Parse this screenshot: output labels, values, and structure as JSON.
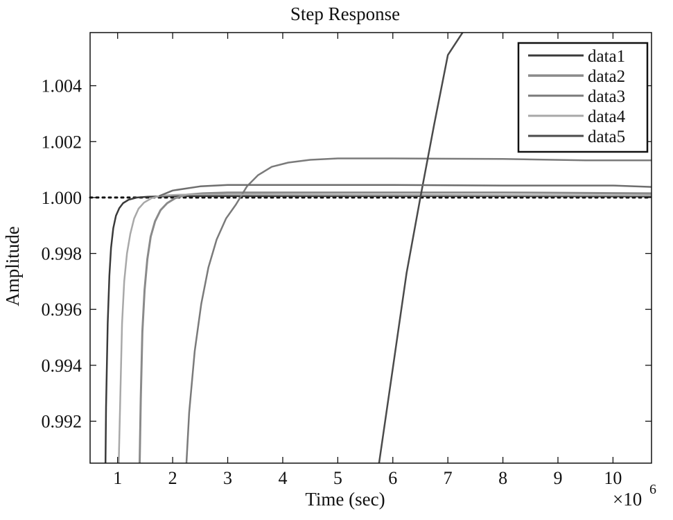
{
  "chart_data": {
    "type": "line",
    "title": "Step Response",
    "xlabel": "Time (sec)",
    "ylabel": "Amplitude",
    "x_exponent_base": "×10",
    "x_exponent_power": "6",
    "xlim": [
      0.5,
      10.7
    ],
    "ylim": [
      0.9905,
      1.0059
    ],
    "x_ticks": [
      1,
      2,
      3,
      4,
      5,
      6,
      7,
      8,
      9,
      10
    ],
    "y_ticks": [
      0.992,
      0.994,
      0.996,
      0.998,
      1.0,
      1.002,
      1.004
    ],
    "y_tick_labels": [
      "0.992",
      "0.994",
      "0.996",
      "0.998",
      "1.000",
      "1.002",
      "1.004"
    ],
    "reference_line": {
      "y": 1.0,
      "style": "dotted"
    },
    "grid": false,
    "legend_position": "top-right",
    "series": [
      {
        "name": "data1",
        "color": "#3a3a3a",
        "width": 2.5,
        "x": [
          0.78,
          0.79,
          0.82,
          0.85,
          0.88,
          0.92,
          0.97,
          1.03,
          1.1,
          1.2,
          1.35,
          1.55,
          2.0,
          3.0,
          5.0,
          8.0,
          10.7
        ],
        "y": [
          0.9905,
          0.9925,
          0.9955,
          0.9972,
          0.9982,
          0.9989,
          0.99935,
          0.99962,
          0.9998,
          0.99992,
          1.0,
          1.00003,
          1.00005,
          1.00005,
          1.00005,
          1.00005,
          1.00004
        ]
      },
      {
        "name": "data2",
        "color": "#8a8a8a",
        "width": 3,
        "x": [
          1.4,
          1.42,
          1.45,
          1.49,
          1.54,
          1.6,
          1.68,
          1.78,
          1.9,
          2.05,
          2.25,
          2.55,
          3.0,
          4.0,
          6.0,
          8.0,
          10.7
        ],
        "y": [
          0.9905,
          0.9928,
          0.9952,
          0.9967,
          0.9978,
          0.9986,
          0.99915,
          0.99955,
          0.9998,
          0.99998,
          1.0001,
          1.00015,
          1.00018,
          1.00018,
          1.00018,
          1.00018,
          1.00015
        ]
      },
      {
        "name": "data3",
        "color": "#7a7a7a",
        "width": 2.5,
        "x": [
          2.25,
          2.3,
          2.4,
          2.52,
          2.65,
          2.8,
          2.97,
          3.15,
          3.35,
          3.55,
          3.8,
          4.1,
          4.5,
          5.0,
          6.0,
          8.0,
          9.5,
          10.7
        ],
        "y": [
          0.9905,
          0.9923,
          0.9945,
          0.9962,
          0.9975,
          0.9985,
          0.99925,
          0.99975,
          1.0004,
          1.0008,
          1.0011,
          1.00125,
          1.00135,
          1.0014,
          1.0014,
          1.00138,
          1.00133,
          1.00133
        ]
      },
      {
        "name": "data4",
        "color": "#a8a8a8",
        "width": 2.5,
        "x": [
          1.02,
          1.05,
          1.08,
          1.12,
          1.17,
          1.23,
          1.3,
          1.38,
          1.48,
          1.62,
          1.8,
          2.1,
          2.6,
          4.0,
          7.0,
          10.7
        ],
        "y": [
          0.9905,
          0.993,
          0.9955,
          0.997,
          0.998,
          0.9987,
          0.99925,
          0.9996,
          0.99982,
          0.99998,
          1.00007,
          1.0001,
          1.00011,
          1.0001,
          1.00009,
          1.00008
        ]
      },
      {
        "name": "data5",
        "color": "#4a4a4a",
        "width": 2.5,
        "x": [
          5.75,
          6.0,
          6.25,
          6.5,
          6.75,
          7.0,
          7.2,
          7.4
        ],
        "y": [
          0.9905,
          0.9939,
          0.9973,
          1.0,
          1.0026,
          1.0051,
          1.0057,
          1.0063
        ]
      },
      {
        "name": "",
        "color": "#6e6e6e",
        "width": 2.5,
        "x": [
          1.75,
          2.0,
          2.5,
          3.0,
          4.0,
          6.0,
          8.0,
          10.0,
          10.7
        ],
        "y": [
          1.00005,
          1.00025,
          1.0004,
          1.00045,
          1.00045,
          1.00045,
          1.00043,
          1.00043,
          1.00038
        ]
      }
    ]
  }
}
